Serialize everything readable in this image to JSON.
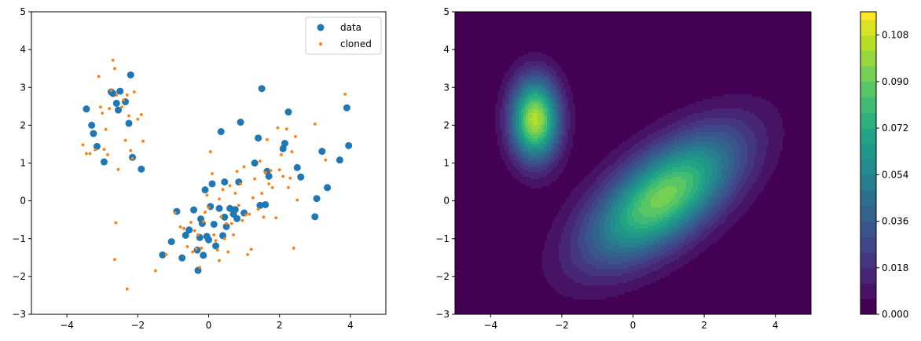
{
  "chart_data": [
    {
      "type": "scatter",
      "title": "",
      "xlabel": "",
      "ylabel": "",
      "xlim": [
        -5,
        5
      ],
      "ylim": [
        -3,
        5
      ],
      "xticks": [
        -4,
        -2,
        0,
        2,
        4
      ],
      "yticks": [
        -3,
        -2,
        -1,
        0,
        1,
        2,
        3,
        4,
        5
      ],
      "grid": false,
      "legend_position": "top-right",
      "series": [
        {
          "name": "data",
          "color": "#1f77b4",
          "marker": "large-circle",
          "points": [
            [
              -3.45,
              2.43
            ],
            [
              -3.3,
              2.0
            ],
            [
              -3.25,
              1.78
            ],
            [
              -3.15,
              1.44
            ],
            [
              -2.95,
              1.03
            ],
            [
              -2.75,
              2.88
            ],
            [
              -2.7,
              2.84
            ],
            [
              -2.6,
              2.58
            ],
            [
              -2.55,
              2.4
            ],
            [
              -2.5,
              2.9
            ],
            [
              -2.35,
              2.62
            ],
            [
              -2.2,
              3.33
            ],
            [
              -2.25,
              2.05
            ],
            [
              -2.15,
              1.15
            ],
            [
              -1.9,
              0.84
            ],
            [
              -1.3,
              -1.43
            ],
            [
              -1.05,
              -1.08
            ],
            [
              -0.9,
              -0.28
            ],
            [
              -0.75,
              -1.51
            ],
            [
              -0.65,
              -0.91
            ],
            [
              -0.55,
              -0.77
            ],
            [
              -0.42,
              -0.24
            ],
            [
              -0.32,
              -1.3
            ],
            [
              -0.3,
              -1.84
            ],
            [
              -0.25,
              -0.97
            ],
            [
              -0.22,
              -0.48
            ],
            [
              -0.18,
              -0.6
            ],
            [
              -0.15,
              -1.44
            ],
            [
              -0.1,
              0.29
            ],
            [
              -0.05,
              -0.94
            ],
            [
              0.0,
              -1.03
            ],
            [
              0.05,
              -0.15
            ],
            [
              0.1,
              0.45
            ],
            [
              0.15,
              -0.62
            ],
            [
              0.2,
              -1.19
            ],
            [
              0.3,
              -0.2
            ],
            [
              0.35,
              1.83
            ],
            [
              0.4,
              -0.92
            ],
            [
              0.45,
              -0.43
            ],
            [
              0.45,
              0.5
            ],
            [
              0.5,
              -0.68
            ],
            [
              0.6,
              -0.2
            ],
            [
              0.7,
              -0.35
            ],
            [
              0.75,
              -0.23
            ],
            [
              0.8,
              -0.47
            ],
            [
              0.85,
              0.5
            ],
            [
              0.9,
              2.08
            ],
            [
              1.0,
              -0.32
            ],
            [
              1.3,
              1.0
            ],
            [
              1.4,
              1.66
            ],
            [
              1.45,
              -0.12
            ],
            [
              1.5,
              2.97
            ],
            [
              1.6,
              -0.1
            ],
            [
              1.65,
              0.78
            ],
            [
              1.7,
              0.65
            ],
            [
              2.1,
              1.38
            ],
            [
              2.15,
              1.52
            ],
            [
              2.25,
              2.35
            ],
            [
              2.5,
              0.88
            ],
            [
              2.6,
              0.63
            ],
            [
              3.0,
              -0.42
            ],
            [
              3.05,
              0.06
            ],
            [
              3.2,
              1.31
            ],
            [
              3.35,
              0.35
            ],
            [
              3.7,
              1.08
            ],
            [
              3.9,
              2.46
            ],
            [
              3.95,
              1.46
            ]
          ]
        },
        {
          "name": "cloned",
          "color": "#ff7f0e",
          "marker": "small-dot",
          "points": [
            [
              -3.55,
              1.48
            ],
            [
              -3.45,
              1.25
            ],
            [
              -3.35,
              1.25
            ],
            [
              -3.2,
              1.35
            ],
            [
              -3.1,
              3.29
            ],
            [
              -3.05,
              2.48
            ],
            [
              -3.0,
              2.32
            ],
            [
              -2.95,
              1.36
            ],
            [
              -2.9,
              1.89
            ],
            [
              -2.85,
              1.22
            ],
            [
              -2.8,
              2.44
            ],
            [
              -2.75,
              2.92
            ],
            [
              -2.7,
              3.72
            ],
            [
              -2.65,
              3.5
            ],
            [
              -2.6,
              2.8
            ],
            [
              -2.62,
              -0.58
            ],
            [
              -2.55,
              0.83
            ],
            [
              -2.45,
              2.48
            ],
            [
              -2.4,
              2.67
            ],
            [
              -2.35,
              1.6
            ],
            [
              -2.3,
              2.8
            ],
            [
              -2.25,
              2.25
            ],
            [
              -2.2,
              1.33
            ],
            [
              -2.15,
              1.12
            ],
            [
              -2.1,
              2.88
            ],
            [
              -2.0,
              2.16
            ],
            [
              -1.9,
              2.28
            ],
            [
              -1.85,
              1.58
            ],
            [
              -2.65,
              -1.55
            ],
            [
              -2.3,
              -2.33
            ],
            [
              -1.5,
              -1.85
            ],
            [
              -1.2,
              -1.42
            ],
            [
              -0.95,
              -0.32
            ],
            [
              -0.8,
              -0.69
            ],
            [
              -0.7,
              -0.73
            ],
            [
              -0.6,
              -1.21
            ],
            [
              -0.5,
              -0.57
            ],
            [
              -0.45,
              -1.35
            ],
            [
              -0.4,
              -0.79
            ],
            [
              -0.35,
              -1.27
            ],
            [
              -0.3,
              -0.9
            ],
            [
              -0.25,
              -1.76
            ],
            [
              -0.2,
              -1.25
            ],
            [
              -0.15,
              -0.55
            ],
            [
              -0.1,
              -0.3
            ],
            [
              -0.05,
              0.15
            ],
            [
              0.0,
              -0.18
            ],
            [
              0.05,
              1.3
            ],
            [
              0.1,
              0.72
            ],
            [
              0.15,
              -0.9
            ],
            [
              0.2,
              -1.05
            ],
            [
              0.25,
              -1.3
            ],
            [
              0.3,
              0.05
            ],
            [
              0.3,
              -1.58
            ],
            [
              0.35,
              -0.42
            ],
            [
              0.4,
              0.3
            ],
            [
              0.45,
              -1.0
            ],
            [
              0.5,
              -0.6
            ],
            [
              0.55,
              -1.35
            ],
            [
              0.6,
              0.4
            ],
            [
              0.65,
              -0.6
            ],
            [
              0.7,
              -0.9
            ],
            [
              0.75,
              0.2
            ],
            [
              0.8,
              0.78
            ],
            [
              0.85,
              -0.12
            ],
            [
              0.9,
              0.45
            ],
            [
              0.95,
              -0.52
            ],
            [
              1.0,
              0.9
            ],
            [
              1.05,
              -0.37
            ],
            [
              1.1,
              -1.42
            ],
            [
              1.15,
              -0.35
            ],
            [
              1.2,
              -1.28
            ],
            [
              1.25,
              0.08
            ],
            [
              1.3,
              0.58
            ],
            [
              1.4,
              -0.22
            ],
            [
              1.45,
              1.05
            ],
            [
              1.5,
              0.2
            ],
            [
              1.55,
              -0.43
            ],
            [
              1.6,
              0.75
            ],
            [
              1.65,
              1.62
            ],
            [
              1.7,
              0.45
            ],
            [
              1.75,
              0.8
            ],
            [
              1.8,
              0.35
            ],
            [
              1.9,
              -0.45
            ],
            [
              1.95,
              1.93
            ],
            [
              2.0,
              0.82
            ],
            [
              2.05,
              1.22
            ],
            [
              2.1,
              0.65
            ],
            [
              2.2,
              1.9
            ],
            [
              2.25,
              0.35
            ],
            [
              2.3,
              0.6
            ],
            [
              2.35,
              1.3
            ],
            [
              2.4,
              -1.25
            ],
            [
              2.45,
              1.7
            ],
            [
              2.5,
              0.02
            ],
            [
              3.0,
              2.03
            ],
            [
              3.3,
              1.08
            ],
            [
              3.85,
              2.82
            ]
          ]
        }
      ]
    },
    {
      "type": "heatmap",
      "subtype": "filled-contour",
      "title": "",
      "xlabel": "",
      "ylabel": "",
      "xlim": [
        -5,
        5
      ],
      "ylim": [
        -3,
        5
      ],
      "xticks": [
        -4,
        -2,
        0,
        2,
        4
      ],
      "yticks": [
        -3,
        -2,
        -1,
        0,
        1,
        2,
        3,
        4,
        5
      ],
      "colormap": "viridis",
      "components": [
        {
          "weight": 0.23,
          "mean": [
            -2.75,
            2.15
          ],
          "cov": [
            [
              0.22,
              0.0
            ],
            [
              0.0,
              0.56
            ]
          ]
        },
        {
          "weight": 0.77,
          "mean": [
            0.85,
            0.1
          ],
          "cov": [
            [
              2.1,
              1.05
            ],
            [
              1.05,
              1.35
            ]
          ]
        }
      ],
      "colorbar": {
        "range": [
          0.0,
          0.117
        ],
        "levels": [
          0.0,
          0.006,
          0.012,
          0.018,
          0.024,
          0.03,
          0.036,
          0.042,
          0.048,
          0.054,
          0.06,
          0.066,
          0.072,
          0.078,
          0.084,
          0.09,
          0.096,
          0.102,
          0.108,
          0.114,
          0.117
        ],
        "tick_labels": [
          "0.000",
          "0.018",
          "0.036",
          "0.054",
          "0.072",
          "0.090",
          "0.108"
        ],
        "tick_values": [
          0.0,
          0.018,
          0.036,
          0.054,
          0.072,
          0.09,
          0.108
        ]
      }
    }
  ]
}
